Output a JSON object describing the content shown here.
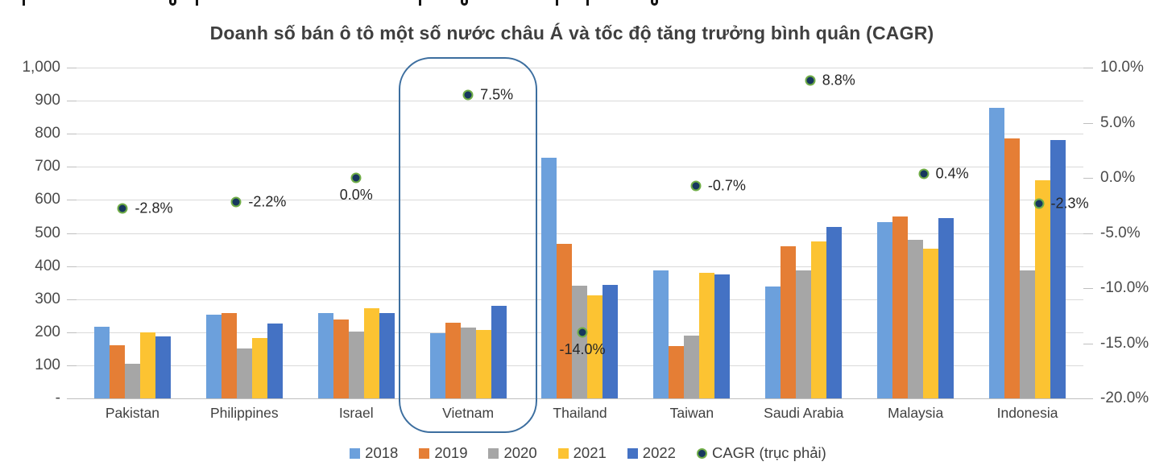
{
  "chart_data": {
    "type": "bar",
    "title": "Doanh số bán ô tô một số nước châu Á và tốc độ tăng trưởng bình quân (CAGR)",
    "categories": [
      "Pakistan",
      "Philippines",
      "Israel",
      "Vietnam",
      "Thailand",
      "Taiwan",
      "Saudi Arabia",
      "Malaysia",
      "Indonesia"
    ],
    "series": [
      {
        "name": "2018",
        "color": "#6ca0dc",
        "values": [
          216,
          253,
          257,
          196,
          727,
          387,
          339,
          532,
          879
        ]
      },
      {
        "name": "2019",
        "color": "#e57e35",
        "values": [
          161,
          259,
          239,
          228,
          467,
          157,
          459,
          549,
          785
        ]
      },
      {
        "name": "2020",
        "color": "#a6a6a6",
        "values": [
          104,
          152,
          201,
          214,
          341,
          190,
          387,
          479,
          387
        ]
      },
      {
        "name": "2021",
        "color": "#fcc332",
        "values": [
          199,
          182,
          272,
          207,
          312,
          380,
          475,
          452,
          659
        ]
      },
      {
        "name": "2022",
        "color": "#4472c4",
        "values": [
          187,
          226,
          257,
          281,
          342,
          374,
          519,
          545,
          782
        ]
      }
    ],
    "cagr_series": {
      "name": "CAGR (trục phải)",
      "values": [
        -2.8,
        -2.2,
        0.0,
        7.5,
        -14.0,
        -0.7,
        8.8,
        0.4,
        -2.3
      ],
      "labels": [
        "-2.8%",
        "-2.2%",
        "0.0%",
        "7.5%",
        "-14.0%",
        "-0.7%",
        "8.8%",
        "0.4%",
        "-2.3%"
      ],
      "label_placement": [
        "right",
        "right",
        "below",
        "right",
        "below",
        "right",
        "right",
        "right",
        "right"
      ],
      "dot_dx": [
        -12,
        -10,
        0,
        0,
        3,
        5,
        8,
        10,
        14
      ],
      "marker_fill": "#17375e",
      "marker_ring": "#70ad47"
    },
    "left_axis": {
      "min": 0,
      "max": 1000,
      "ticks": [
        "1,000",
        "900",
        "800",
        "700",
        "600",
        "500",
        "400",
        "300",
        "200",
        "100",
        "-"
      ]
    },
    "right_axis": {
      "min": -20,
      "max": 10,
      "ticks": [
        "10.0%",
        "5.0%",
        "0.0%",
        "-5.0%",
        "-10.0%",
        "-15.0%",
        "-20.0%"
      ]
    },
    "grid": "horizontal",
    "legend_position": "bottom",
    "highlight": {
      "category": "Vietnam",
      "border_color": "#3c6e9f"
    }
  }
}
